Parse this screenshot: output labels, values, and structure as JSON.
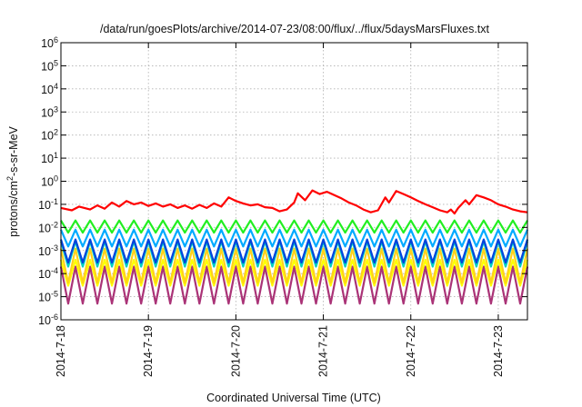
{
  "chart_data": {
    "type": "line",
    "title": "/data/run/goesPlots/archive/2014-07-23/08:00/flux/../flux/5daysMarsFluxes.txt",
    "xlabel": "Coordinated Universal Time (UTC)",
    "ylabel_parts": [
      "protons/cm",
      "2",
      "-s-sr-MeV"
    ],
    "y_scale": "log",
    "ylim": [
      1e-06,
      1000000.0
    ],
    "y_ticks": [
      {
        "base": "10",
        "exp": "-6"
      },
      {
        "base": "10",
        "exp": "-5"
      },
      {
        "base": "10",
        "exp": "-4"
      },
      {
        "base": "10",
        "exp": "-3"
      },
      {
        "base": "10",
        "exp": "-2"
      },
      {
        "base": "10",
        "exp": "-1"
      },
      {
        "base": "10",
        "exp": "0"
      },
      {
        "base": "10",
        "exp": "1"
      },
      {
        "base": "10",
        "exp": "2"
      },
      {
        "base": "10",
        "exp": "3"
      },
      {
        "base": "10",
        "exp": "4"
      },
      {
        "base": "10",
        "exp": "5"
      },
      {
        "base": "10",
        "exp": "6"
      }
    ],
    "xlim": [
      "2014-07-18 00:00",
      "2014-07-23 08:00"
    ],
    "x_ticks": [
      "2014-7-18",
      "2014-7-19",
      "2014-7-20",
      "2014-7-21",
      "2014-7-22",
      "2014-7-23"
    ],
    "grid": true,
    "series": [
      {
        "color": "#ff0000",
        "points": [
          [
            "2014-07-18 00:00",
            0.07
          ],
          [
            "2014-07-18 03:00",
            0.055
          ],
          [
            "2014-07-18 05:00",
            0.08
          ],
          [
            "2014-07-18 08:00",
            0.06
          ],
          [
            "2014-07-18 10:00",
            0.09
          ],
          [
            "2014-07-18 12:00",
            0.065
          ],
          [
            "2014-07-18 14:00",
            0.12
          ],
          [
            "2014-07-18 16:00",
            0.08
          ],
          [
            "2014-07-18 18:00",
            0.14
          ],
          [
            "2014-07-18 20:00",
            0.1
          ],
          [
            "2014-07-18 22:00",
            0.12
          ],
          [
            "2014-07-19 00:00",
            0.085
          ],
          [
            "2014-07-19 02:00",
            0.11
          ],
          [
            "2014-07-19 04:00",
            0.08
          ],
          [
            "2014-07-19 06:00",
            0.1
          ],
          [
            "2014-07-19 08:00",
            0.07
          ],
          [
            "2014-07-19 10:00",
            0.09
          ],
          [
            "2014-07-19 12:00",
            0.065
          ],
          [
            "2014-07-19 14:00",
            0.095
          ],
          [
            "2014-07-19 16:00",
            0.07
          ],
          [
            "2014-07-19 18:00",
            0.11
          ],
          [
            "2014-07-19 20:00",
            0.08
          ],
          [
            "2014-07-19 22:00",
            0.2
          ],
          [
            "2014-07-20 00:00",
            0.14
          ],
          [
            "2014-07-20 02:00",
            0.11
          ],
          [
            "2014-07-20 04:00",
            0.09
          ],
          [
            "2014-07-20 06:00",
            0.1
          ],
          [
            "2014-07-20 08:00",
            0.075
          ],
          [
            "2014-07-20 10:00",
            0.07
          ],
          [
            "2014-07-20 12:00",
            0.05
          ],
          [
            "2014-07-20 14:00",
            0.06
          ],
          [
            "2014-07-20 16:00",
            0.12
          ],
          [
            "2014-07-20 17:00",
            0.3
          ],
          [
            "2014-07-20 19:00",
            0.15
          ],
          [
            "2014-07-20 21:00",
            0.4
          ],
          [
            "2014-07-20 23:00",
            0.28
          ],
          [
            "2014-07-21 01:00",
            0.35
          ],
          [
            "2014-07-21 03:00",
            0.25
          ],
          [
            "2014-07-21 05:00",
            0.18
          ],
          [
            "2014-07-21 07:00",
            0.12
          ],
          [
            "2014-07-21 09:00",
            0.09
          ],
          [
            "2014-07-21 11:00",
            0.06
          ],
          [
            "2014-07-21 13:00",
            0.045
          ],
          [
            "2014-07-21 15:00",
            0.055
          ],
          [
            "2014-07-21 17:00",
            0.2
          ],
          [
            "2014-07-21 18:00",
            0.12
          ],
          [
            "2014-07-21 20:00",
            0.38
          ],
          [
            "2014-07-21 22:00",
            0.28
          ],
          [
            "2014-07-22 00:00",
            0.2
          ],
          [
            "2014-07-22 02:00",
            0.14
          ],
          [
            "2014-07-22 04:00",
            0.1
          ],
          [
            "2014-07-22 06:00",
            0.075
          ],
          [
            "2014-07-22 08:00",
            0.055
          ],
          [
            "2014-07-22 10:00",
            0.045
          ],
          [
            "2014-07-22 11:00",
            0.06
          ],
          [
            "2014-07-22 12:00",
            0.04
          ],
          [
            "2014-07-22 13:00",
            0.07
          ],
          [
            "2014-07-22 15:00",
            0.15
          ],
          [
            "2014-07-22 16:00",
            0.1
          ],
          [
            "2014-07-22 18:00",
            0.25
          ],
          [
            "2014-07-22 20:00",
            0.2
          ],
          [
            "2014-07-22 22:00",
            0.15
          ],
          [
            "2014-07-23 00:00",
            0.1
          ],
          [
            "2014-07-23 02:00",
            0.08
          ],
          [
            "2014-07-23 04:00",
            0.06
          ],
          [
            "2014-07-23 06:00",
            0.05
          ],
          [
            "2014-07-23 08:00",
            0.045
          ]
        ]
      },
      {
        "color": "#22ee22",
        "cycle_hours": 4,
        "high": 0.02,
        "low": 0.006
      },
      {
        "color": "#00aaff",
        "cycle_hours": 4,
        "high": 0.008,
        "low": 0.0015
      },
      {
        "color": "#0044dd",
        "cycle_hours": 4,
        "high": 0.003,
        "low": 0.0003
      },
      {
        "color": "#00d0c0",
        "cycle_hours": 4,
        "high": 0.0025,
        "low": 0.0002
      },
      {
        "color": "#ffd21a",
        "cycle_hours": 4,
        "high": 0.0012,
        "low": 4e-05
      },
      {
        "color": "#ffff00",
        "cycle_hours": 4,
        "high": 0.0004,
        "low": 3e-05
      },
      {
        "color": "#aa3377",
        "cycle_hours": 4,
        "high": 0.0002,
        "low": 5e-06
      }
    ]
  }
}
